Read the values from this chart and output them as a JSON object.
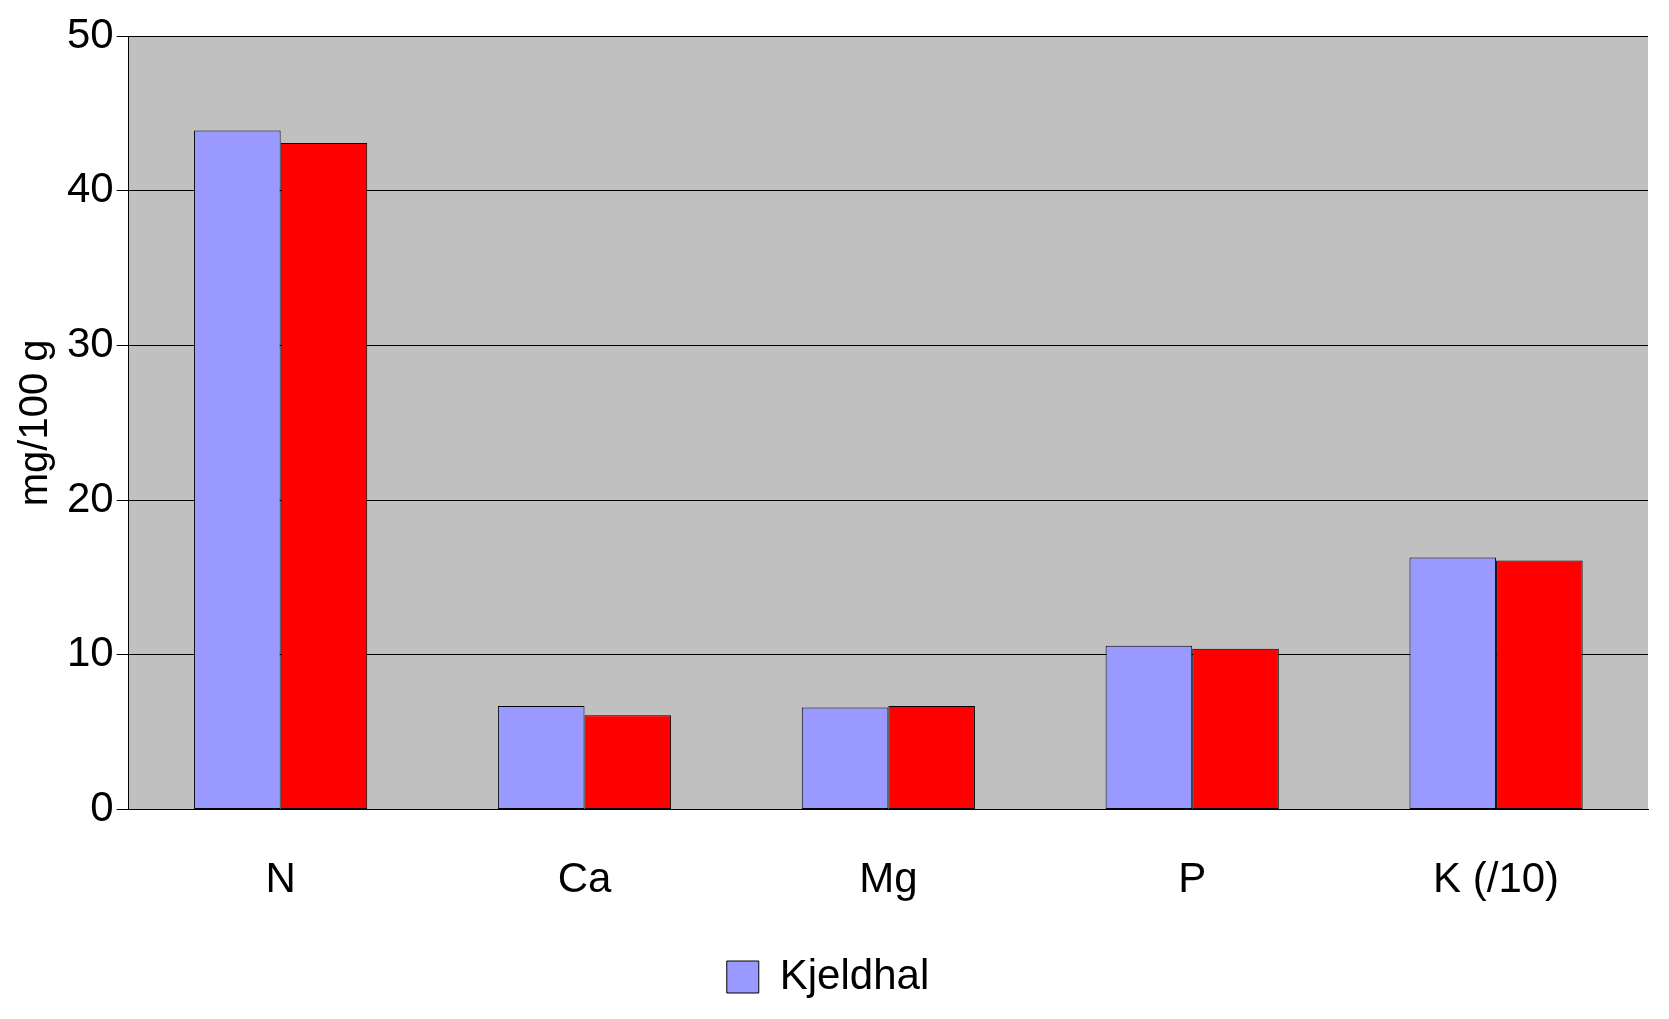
{
  "chart_data": {
    "type": "bar",
    "ylabel": "mg/100 g",
    "categories": [
      "N",
      "Ca",
      "Mg",
      "P",
      "K (/10)"
    ],
    "series": [
      {
        "name": "Kjeldhal",
        "color": "#9999ff",
        "values": [
          43.9,
          6.7,
          6.6,
          10.6,
          16.3
        ]
      },
      {
        "color": "#ff0000",
        "values": [
          43.1,
          6.1,
          6.7,
          10.4,
          16.1
        ]
      }
    ],
    "ylim": [
      0,
      50
    ],
    "yticks": [
      0,
      10,
      20,
      30,
      40,
      50
    ],
    "grid": "y",
    "legend": "bottom"
  }
}
